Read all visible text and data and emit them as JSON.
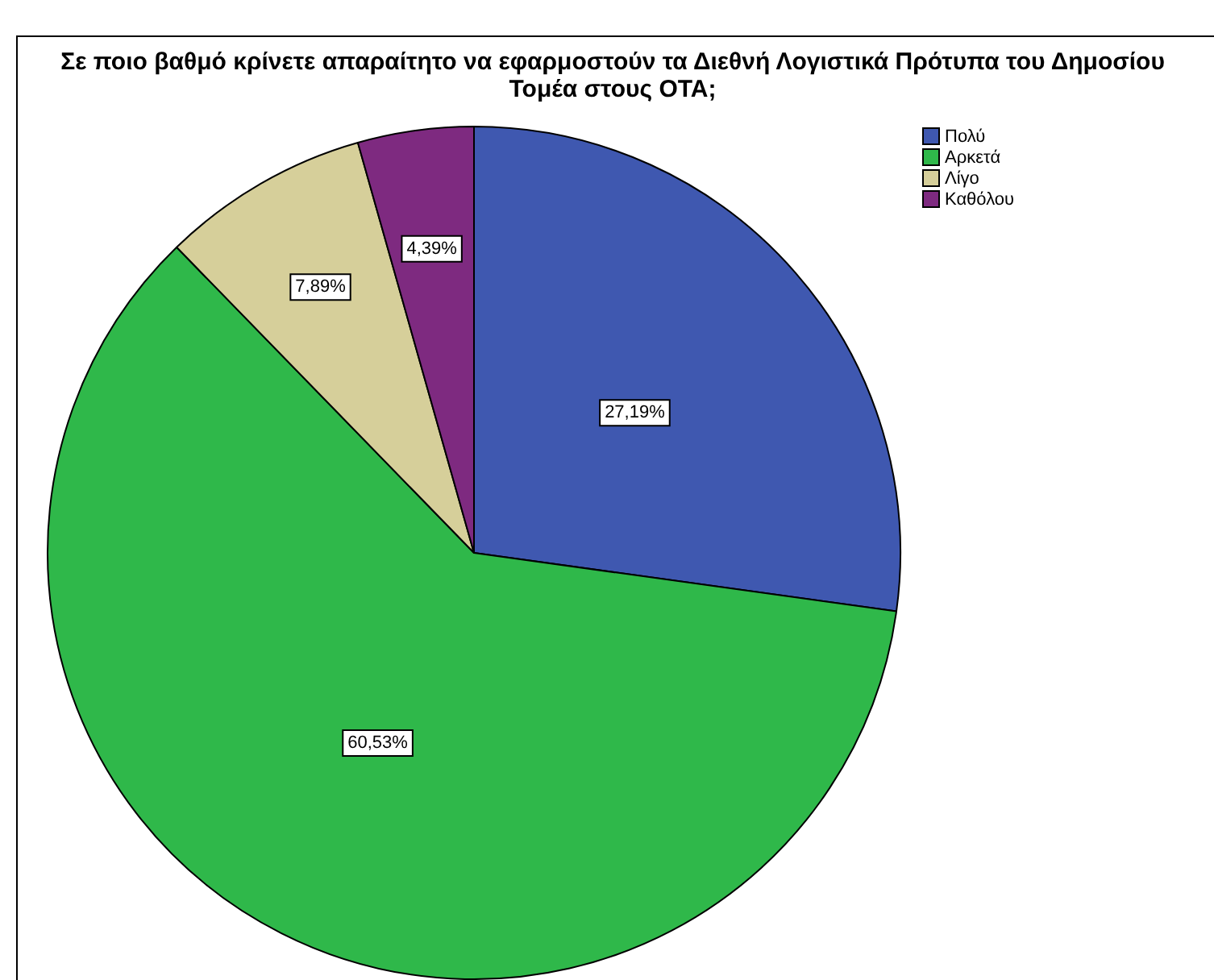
{
  "chart_data": {
    "type": "pie",
    "title": "Σε ποιο βαθμό κρίνετε  απαραίτητο να εφαρμοστούν τα  Διεθνή  Λογιστικά Πρότυπα  του Δημοσίου Τομέα   στους ΟΤΑ;",
    "categories": [
      "Πολύ",
      "Αρκετά",
      "Λίγο",
      "Καθόλου"
    ],
    "values": [
      27.19,
      60.53,
      7.89,
      4.39
    ],
    "value_labels": [
      "27,19%",
      "60,53%",
      "7,89%",
      "4,39%"
    ],
    "colors": [
      "#3f58b0",
      "#2fb84a",
      "#d6cf9a",
      "#7e2a80"
    ],
    "legend": "top right"
  }
}
